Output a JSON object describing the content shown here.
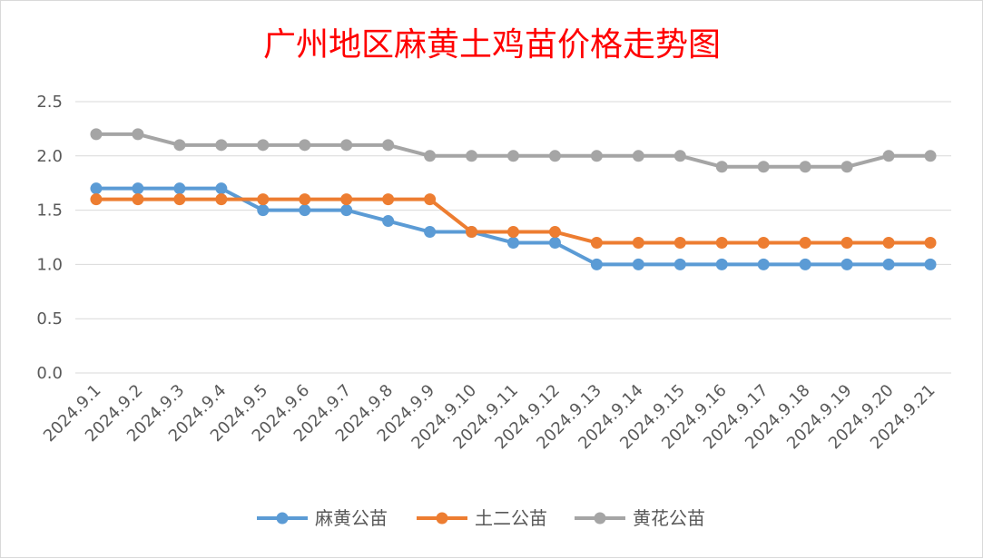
{
  "chart_data": {
    "type": "line",
    "title": "广州地区麻黄土鸡苗价格走势图",
    "xlabel": "",
    "ylabel": "",
    "ylim": [
      0,
      2.5
    ],
    "y_ticks": [
      "0.0",
      "0.5",
      "1.0",
      "1.5",
      "2.0",
      "2.5"
    ],
    "grid": true,
    "legend_position": "bottom",
    "categories": [
      "2024.9.1",
      "2024.9.2",
      "2024.9.3",
      "2024.9.4",
      "2024.9.5",
      "2024.9.6",
      "2024.9.7",
      "2024.9.8",
      "2024.9.9",
      "2024.9.10",
      "2024.9.11",
      "2024.9.12",
      "2024.9.13",
      "2024.9.14",
      "2024.9.15",
      "2024.9.16",
      "2024.9.17",
      "2024.9.18",
      "2024.9.19",
      "2024.9.20",
      "2024.9.21"
    ],
    "series": [
      {
        "name": "麻黄公苗",
        "color": "#5b9bd5",
        "values": [
          1.7,
          1.7,
          1.7,
          1.7,
          1.5,
          1.5,
          1.5,
          1.4,
          1.3,
          1.3,
          1.2,
          1.2,
          1.0,
          1.0,
          1.0,
          1.0,
          1.0,
          1.0,
          1.0,
          1.0,
          1.0
        ]
      },
      {
        "name": "土二公苗",
        "color": "#ed7d31",
        "values": [
          1.6,
          1.6,
          1.6,
          1.6,
          1.6,
          1.6,
          1.6,
          1.6,
          1.6,
          1.3,
          1.3,
          1.3,
          1.2,
          1.2,
          1.2,
          1.2,
          1.2,
          1.2,
          1.2,
          1.2,
          1.2
        ]
      },
      {
        "name": "黄花公苗",
        "color": "#a5a5a5",
        "values": [
          2.2,
          2.2,
          2.1,
          2.1,
          2.1,
          2.1,
          2.1,
          2.1,
          2.0,
          2.0,
          2.0,
          2.0,
          2.0,
          2.0,
          2.0,
          1.9,
          1.9,
          1.9,
          1.9,
          2.0,
          2.0
        ]
      }
    ]
  }
}
